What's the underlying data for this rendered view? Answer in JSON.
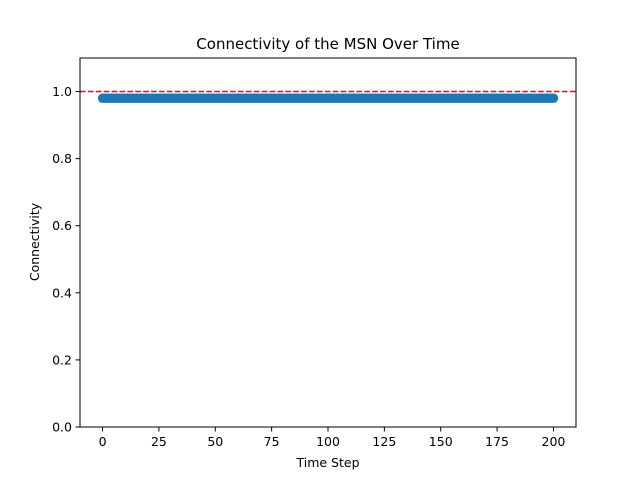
{
  "chart_data": {
    "type": "scatter",
    "title": "Connectivity of the MSN Over Time",
    "xlabel": "Time Step",
    "ylabel": "Connectivity",
    "xlim": [
      -10,
      210
    ],
    "ylim": [
      0.0,
      1.1
    ],
    "xticks": [
      0,
      25,
      50,
      75,
      100,
      125,
      150,
      175,
      200
    ],
    "xtick_labels": [
      "0",
      "25",
      "50",
      "75",
      "100",
      "125",
      "150",
      "175",
      "200"
    ],
    "yticks": [
      0.0,
      0.2,
      0.4,
      0.6,
      0.8,
      1.0
    ],
    "ytick_labels": [
      "0.0",
      "0.2",
      "0.4",
      "0.6",
      "0.8",
      "1.0"
    ],
    "grid": false,
    "series": [
      {
        "color": "#1f77b4",
        "marker": "circle",
        "x_start": 0,
        "x_end": 200,
        "x_step": 1,
        "y_constant": 0.98
      }
    ],
    "reference_lines": [
      {
        "orientation": "horizontal",
        "y": 1.0,
        "color": "#ff0000",
        "style": "dashed"
      }
    ]
  }
}
